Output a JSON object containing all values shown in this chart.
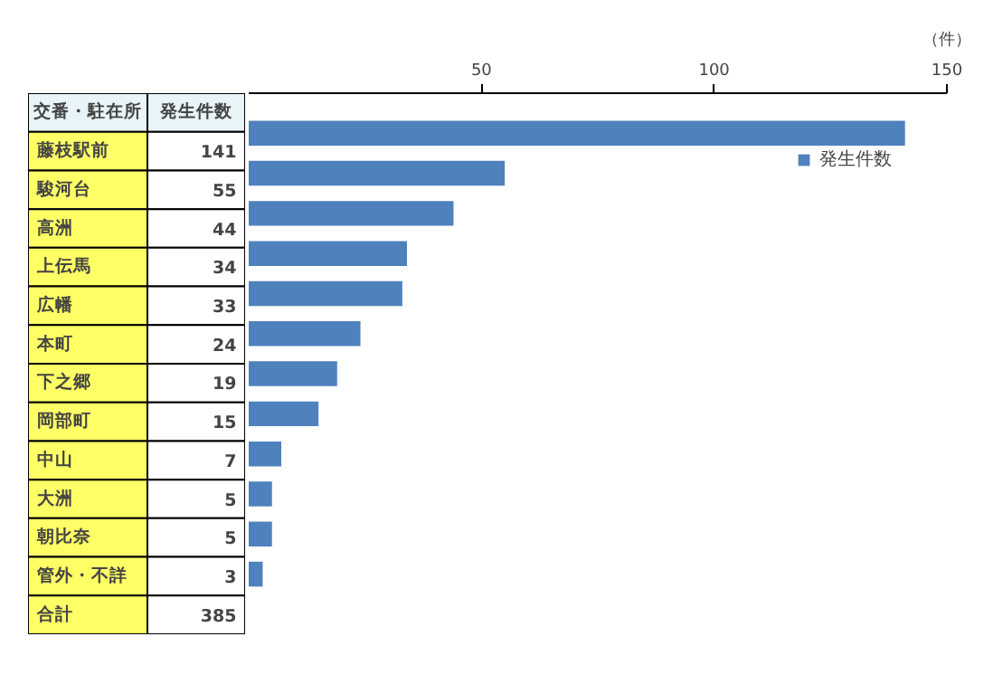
{
  "chart_data": {
    "type": "bar",
    "orientation": "horizontal",
    "ylabel": "交番・駐在所",
    "xlabel": "（件）",
    "categories": [
      "藤枝駅前",
      "駿河台",
      "高洲",
      "上伝馬",
      "広幡",
      "本町",
      "下之郷",
      "岡部町",
      "中山",
      "大洲",
      "朝比奈",
      "管外・不詳"
    ],
    "series": [
      {
        "name": "発生件数",
        "color": "#4f81bd",
        "values": [
          141,
          55,
          44,
          34,
          33,
          24,
          19,
          15,
          7,
          5,
          5,
          3
        ]
      }
    ],
    "xlim": [
      0,
      150
    ],
    "xticks": [
      50,
      100,
      150
    ],
    "data_labels": true,
    "grid": false,
    "legend": "top right",
    "annotations": [
      "発生件数",
      "合計",
      "385"
    ]
  }
}
